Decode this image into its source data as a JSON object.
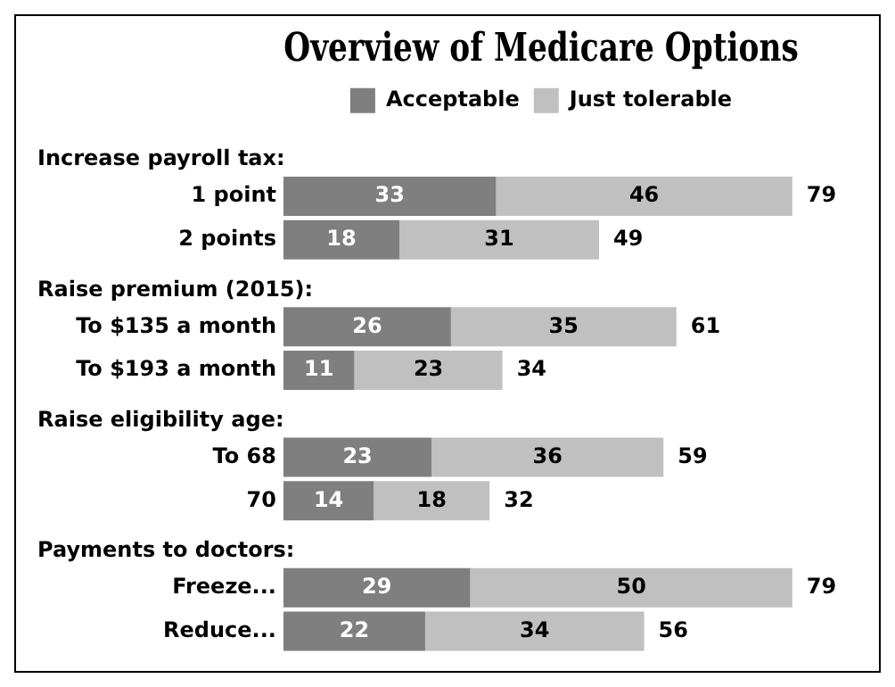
{
  "chart_data": {
    "type": "bar",
    "orientation": "horizontal",
    "stacked": true,
    "title": "Overview of Medicare Options",
    "categories": [
      null,
      "1 point",
      "2 points",
      null,
      "To $135 a month",
      "To $193 a month",
      null,
      "To 68",
      "70",
      null,
      "Freeze...",
      "Reduce..."
    ],
    "series": [
      {
        "name": "Acceptable",
        "color": "#7f7f7f",
        "values": [
          null,
          33,
          18,
          null,
          26,
          11,
          null,
          23,
          14,
          null,
          29,
          22
        ]
      },
      {
        "name": "Just tolerable",
        "color": "#c0c0c0",
        "values": [
          null,
          46,
          31,
          null,
          35,
          23,
          null,
          36,
          18,
          null,
          50,
          34
        ]
      }
    ],
    "annotations": [
      "Increase payroll tax:",
      "Raise premium (2015):",
      "Raise eligibility age:",
      "Payments to doctors:"
    ],
    "totals": [
      null,
      "79",
      "49",
      null,
      "61",
      "34",
      null,
      "59",
      "32",
      null,
      "79",
      "56"
    ],
    "data_labels": true,
    "legend": "top"
  }
}
